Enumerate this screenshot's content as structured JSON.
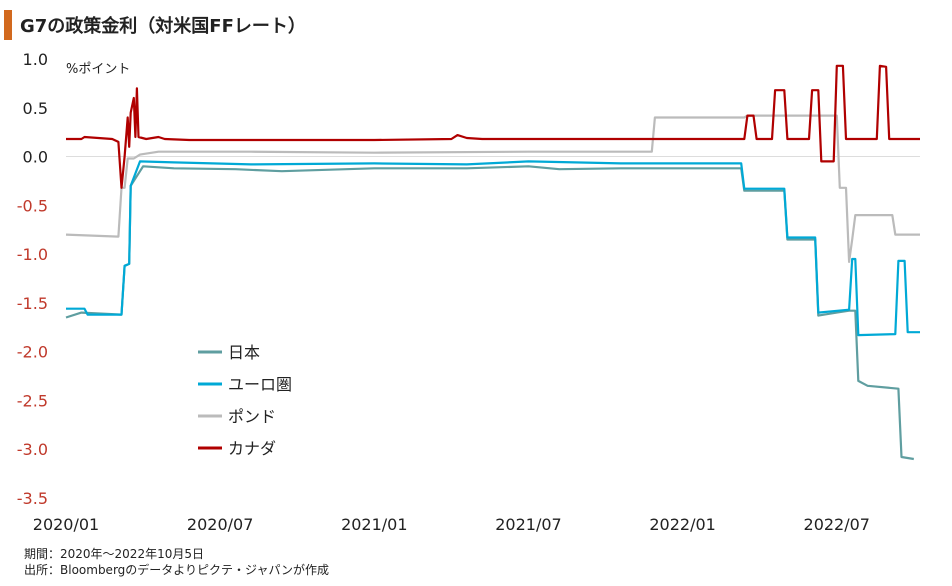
{
  "title": "G7の政策金利（対米国FFレート）",
  "footnote": {
    "period": "期間：2020年～2022年10月5日",
    "source": "出所：Bloombergのデータよりピクテ・ジャパンが作成"
  },
  "chart_data": {
    "type": "line",
    "title": "G7の政策金利（対米国FFレート）",
    "ylabel": "%ポイント",
    "xlabel": "",
    "ylim": [
      -3.5,
      1.0
    ],
    "xlim": [
      2020.0,
      2022.77
    ],
    "yticks": [
      {
        "value": 1.0,
        "label": "1.0"
      },
      {
        "value": 0.5,
        "label": "0.5"
      },
      {
        "value": 0.0,
        "label": "0.0"
      },
      {
        "value": -0.5,
        "label": "-0.5"
      },
      {
        "value": -1.0,
        "label": "-1.0"
      },
      {
        "value": -1.5,
        "label": "-1.5"
      },
      {
        "value": -2.0,
        "label": "-2.0"
      },
      {
        "value": -2.5,
        "label": "-2.5"
      },
      {
        "value": -3.0,
        "label": "-3.0"
      },
      {
        "value": -3.5,
        "label": "-3.5"
      }
    ],
    "xticks": [
      {
        "value": 2020.0,
        "label": "2020/01"
      },
      {
        "value": 2020.5,
        "label": "2020/07"
      },
      {
        "value": 2021.0,
        "label": "2021/01"
      },
      {
        "value": 2021.5,
        "label": "2021/07"
      },
      {
        "value": 2022.0,
        "label": "2022/01"
      },
      {
        "value": 2022.5,
        "label": "2022/07"
      }
    ],
    "grid": "zero-line only",
    "legend_position": "center-left",
    "series": [
      {
        "name": "日本",
        "color": "#5f9ea0",
        "points": [
          [
            2020.0,
            -1.65
          ],
          [
            2020.05,
            -1.6
          ],
          [
            2020.18,
            -1.62
          ],
          [
            2020.19,
            -1.12
          ],
          [
            2020.205,
            -1.1
          ],
          [
            2020.21,
            -0.3
          ],
          [
            2020.24,
            -0.15
          ],
          [
            2020.25,
            -0.1
          ],
          [
            2020.35,
            -0.12
          ],
          [
            2020.55,
            -0.13
          ],
          [
            2020.7,
            -0.15
          ],
          [
            2021.0,
            -0.12
          ],
          [
            2021.3,
            -0.12
          ],
          [
            2021.5,
            -0.1
          ],
          [
            2021.6,
            -0.13
          ],
          [
            2021.8,
            -0.12
          ],
          [
            2022.0,
            -0.12
          ],
          [
            2022.19,
            -0.12
          ],
          [
            2022.2,
            -0.35
          ],
          [
            2022.33,
            -0.35
          ],
          [
            2022.34,
            -0.85
          ],
          [
            2022.43,
            -0.85
          ],
          [
            2022.44,
            -1.63
          ],
          [
            2022.5,
            -1.6
          ],
          [
            2022.54,
            -1.58
          ],
          [
            2022.56,
            -1.58
          ],
          [
            2022.57,
            -2.3
          ],
          [
            2022.6,
            -2.35
          ],
          [
            2022.7,
            -2.38
          ],
          [
            2022.71,
            -3.08
          ],
          [
            2022.75,
            -3.1
          ]
        ]
      },
      {
        "name": "ユーロ圏",
        "color": "#00a9d6",
        "points": [
          [
            2020.0,
            -1.56
          ],
          [
            2020.06,
            -1.56
          ],
          [
            2020.07,
            -1.62
          ],
          [
            2020.18,
            -1.62
          ],
          [
            2020.19,
            -1.12
          ],
          [
            2020.205,
            -1.1
          ],
          [
            2020.21,
            -0.3
          ],
          [
            2020.24,
            -0.05
          ],
          [
            2020.35,
            -0.06
          ],
          [
            2020.6,
            -0.08
          ],
          [
            2021.0,
            -0.07
          ],
          [
            2021.3,
            -0.08
          ],
          [
            2021.5,
            -0.05
          ],
          [
            2021.8,
            -0.07
          ],
          [
            2022.0,
            -0.07
          ],
          [
            2022.19,
            -0.07
          ],
          [
            2022.2,
            -0.33
          ],
          [
            2022.33,
            -0.33
          ],
          [
            2022.34,
            -0.83
          ],
          [
            2022.43,
            -0.83
          ],
          [
            2022.44,
            -1.6
          ],
          [
            2022.54,
            -1.57
          ],
          [
            2022.55,
            -1.05
          ],
          [
            2022.56,
            -1.05
          ],
          [
            2022.57,
            -1.83
          ],
          [
            2022.69,
            -1.82
          ],
          [
            2022.7,
            -1.07
          ],
          [
            2022.72,
            -1.07
          ],
          [
            2022.73,
            -1.8
          ],
          [
            2022.77,
            -1.8
          ]
        ]
      },
      {
        "name": "ポンド",
        "color": "#bbbbbb",
        "points": [
          [
            2020.0,
            -0.8
          ],
          [
            2020.17,
            -0.82
          ],
          [
            2020.18,
            -0.32
          ],
          [
            2020.19,
            -0.32
          ],
          [
            2020.2,
            -0.02
          ],
          [
            2020.22,
            -0.02
          ],
          [
            2020.24,
            0.02
          ],
          [
            2020.3,
            0.05
          ],
          [
            2020.6,
            0.05
          ],
          [
            2021.0,
            0.04
          ],
          [
            2021.5,
            0.05
          ],
          [
            2021.8,
            0.05
          ],
          [
            2021.9,
            0.05
          ],
          [
            2021.91,
            0.4
          ],
          [
            2022.2,
            0.4
          ],
          [
            2022.21,
            0.42
          ],
          [
            2022.5,
            0.42
          ],
          [
            2022.51,
            -0.32
          ],
          [
            2022.53,
            -0.32
          ],
          [
            2022.54,
            -1.08
          ],
          [
            2022.55,
            -0.85
          ],
          [
            2022.56,
            -0.6
          ],
          [
            2022.68,
            -0.6
          ],
          [
            2022.69,
            -0.8
          ],
          [
            2022.77,
            -0.8
          ]
        ]
      },
      {
        "name": "カナダ",
        "color": "#b00000",
        "points": [
          [
            2020.0,
            0.18
          ],
          [
            2020.05,
            0.18
          ],
          [
            2020.06,
            0.2
          ],
          [
            2020.15,
            0.18
          ],
          [
            2020.17,
            0.15
          ],
          [
            2020.18,
            -0.32
          ],
          [
            2020.19,
            0.0
          ],
          [
            2020.2,
            0.4
          ],
          [
            2020.205,
            0.1
          ],
          [
            2020.21,
            0.45
          ],
          [
            2020.22,
            0.6
          ],
          [
            2020.225,
            0.2
          ],
          [
            2020.23,
            0.7
          ],
          [
            2020.235,
            0.2
          ],
          [
            2020.26,
            0.18
          ],
          [
            2020.3,
            0.2
          ],
          [
            2020.32,
            0.18
          ],
          [
            2020.4,
            0.17
          ],
          [
            2020.6,
            0.17
          ],
          [
            2021.0,
            0.17
          ],
          [
            2021.25,
            0.18
          ],
          [
            2021.27,
            0.22
          ],
          [
            2021.3,
            0.19
          ],
          [
            2021.35,
            0.18
          ],
          [
            2021.6,
            0.18
          ],
          [
            2022.0,
            0.18
          ],
          [
            2022.2,
            0.18
          ],
          [
            2022.21,
            0.42
          ],
          [
            2022.23,
            0.42
          ],
          [
            2022.24,
            0.18
          ],
          [
            2022.29,
            0.18
          ],
          [
            2022.3,
            0.68
          ],
          [
            2022.33,
            0.68
          ],
          [
            2022.34,
            0.18
          ],
          [
            2022.41,
            0.18
          ],
          [
            2022.42,
            0.68
          ],
          [
            2022.44,
            0.68
          ],
          [
            2022.45,
            -0.05
          ],
          [
            2022.49,
            -0.05
          ],
          [
            2022.5,
            0.93
          ],
          [
            2022.52,
            0.93
          ],
          [
            2022.53,
            0.18
          ],
          [
            2022.63,
            0.18
          ],
          [
            2022.64,
            0.93
          ],
          [
            2022.66,
            0.92
          ],
          [
            2022.67,
            0.18
          ],
          [
            2022.77,
            0.18
          ]
        ]
      }
    ]
  }
}
